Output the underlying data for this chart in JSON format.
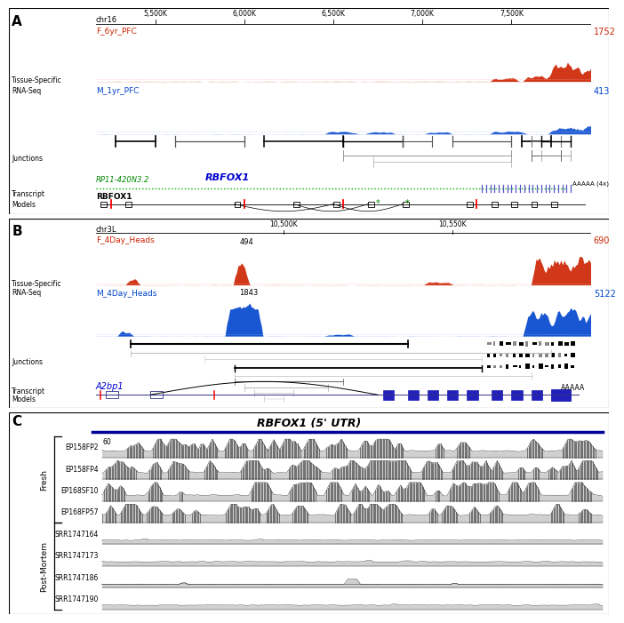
{
  "panel_A": {
    "label": "A",
    "chrom": "chr16",
    "x_ticks": [
      "5,500K",
      "6,000K",
      "6,500K",
      "7,000K",
      "7,500K"
    ],
    "x_tick_pos": [
      0.12,
      0.3,
      0.48,
      0.66,
      0.84
    ],
    "track_red_label": "F_6yr_PFC",
    "track_red_value": "1752",
    "track_blue_label": "M_1yr_PFC",
    "track_blue_value": "413",
    "left_label1": "Tissue-Specific",
    "left_label2": "RNA-Seq",
    "junctions_label": "Junctions",
    "transcript_label1": "Transcript",
    "transcript_label2": "Models",
    "gene1_italic": "RP11-420N3.2",
    "gene1_color": "#00aa00",
    "gene2_italic": "RBFOX1",
    "gene2_color": "#0000cc",
    "rbfox1_label": "RBFOX1",
    "polya": "AAAAA (4x)"
  },
  "panel_B": {
    "label": "B",
    "chrom": "chr3L",
    "x_ticks": [
      "10,500K",
      "10,550K"
    ],
    "x_tick_pos": [
      0.38,
      0.72
    ],
    "track_red_label": "F_4Day_Heads",
    "track_red_value": "690",
    "track_red_peak1": "494",
    "track_blue_label": "M_4Day_Heads",
    "track_blue_value": "5122",
    "track_blue_peak1": "1843",
    "left_label1": "Tissue-Specific",
    "left_label2": "RNA-Seq",
    "junctions_label": "Junctions",
    "transcript_label1": "Transcript",
    "transcript_label2": "Models",
    "gene_italic": "A2bp1",
    "gene_color": "#0000cc",
    "polya": "AAAAA"
  },
  "panel_C": {
    "label": "C",
    "title": "RBFOX1 (5' UTR)",
    "bar_color": "#000099",
    "fresh_label": "Fresh",
    "postmortem_label": "Post-Mortem",
    "fresh_tracks": [
      "EP158FP2",
      "EP158FP4",
      "EP168SF10",
      "EP168FP57"
    ],
    "postmortem_tracks": [
      "SRR1747164",
      "SRR1747173",
      "SRR1747186",
      "SRR1747190"
    ],
    "scale_label": "60"
  },
  "colors": {
    "red": "#cc2200",
    "blue": "#0044cc",
    "green": "#008800",
    "black": "#000000",
    "gray": "#888888",
    "light_gray": "#cccccc",
    "bg_white": "#ffffff",
    "track_fill_gray": "#cccccc"
  }
}
